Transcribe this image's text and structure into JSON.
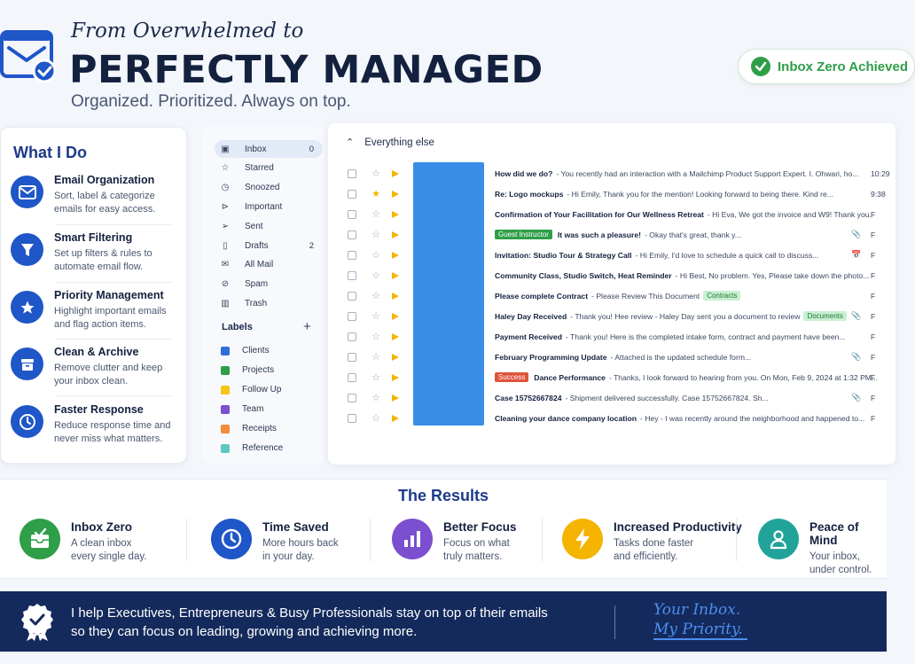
{
  "header": {
    "tagline": "From Overwhelmed to",
    "title": "PERFECTLY MANAGED",
    "subtitle": "Organized. Prioritized. Always on top.",
    "badge": "Inbox Zero Achieved"
  },
  "what_i_do": {
    "title": "What I Do",
    "items": [
      {
        "title": "Email Organization",
        "desc": "Sort, label & categorize emails for easy access.",
        "icon": "envelope-icon"
      },
      {
        "title": "Smart Filtering",
        "desc": "Set up filters & rules to automate email flow.",
        "icon": "filter-icon"
      },
      {
        "title": "Priority Management",
        "desc": "Highlight important emails and flag action items.",
        "icon": "star-icon"
      },
      {
        "title": "Clean & Archive",
        "desc": "Remove clutter and keep your inbox clean.",
        "icon": "archive-icon"
      },
      {
        "title": "Faster Response",
        "desc": "Reduce response time and never miss what matters.",
        "icon": "clock-icon"
      }
    ]
  },
  "sidebar": {
    "nav": [
      {
        "label": "Inbox",
        "count": "0",
        "icon": "inbox-icon"
      },
      {
        "label": "Starred",
        "count": "",
        "icon": "star-icon"
      },
      {
        "label": "Snoozed",
        "count": "",
        "icon": "clock-icon"
      },
      {
        "label": "Important",
        "count": "",
        "icon": "important-icon"
      },
      {
        "label": "Sent",
        "count": "",
        "icon": "send-icon"
      },
      {
        "label": "Drafts",
        "count": "2",
        "icon": "draft-icon"
      },
      {
        "label": "All Mail",
        "count": "",
        "icon": "mail-icon"
      },
      {
        "label": "Spam",
        "count": "",
        "icon": "spam-icon"
      },
      {
        "label": "Trash",
        "count": "",
        "icon": "trash-icon"
      }
    ],
    "labels_title": "Labels",
    "labels": [
      {
        "label": "Clients",
        "color": "#2f6fd6"
      },
      {
        "label": "Projects",
        "color": "#2e9e48"
      },
      {
        "label": "Follow Up",
        "color": "#f5c518"
      },
      {
        "label": "Team",
        "color": "#7b4fd0"
      },
      {
        "label": "Receipts",
        "color": "#f28c3b"
      },
      {
        "label": "Reference",
        "color": "#5ec9c0"
      }
    ]
  },
  "inbox": {
    "section_title": "Everything else",
    "rows": [
      {
        "chip": "",
        "subject": "How did we do?",
        "snippet": " - You recently had an interaction with a Mailchimp Product Support Expert. I. Ohwari, ho...",
        "tag": "",
        "time": "10:29",
        "star": false,
        "att": ""
      },
      {
        "chip": "",
        "subject": "Re: Logo mockups",
        "snippet": " - Hi Emily, Thank you for the mention! Looking forward to being there. Kind re...",
        "tag": "",
        "time": "9:38",
        "star": true,
        "att": ""
      },
      {
        "chip": "",
        "subject": "Confirmation of Your Facilitation for Our Wellness Retreat",
        "snippet": " - Hi Eva, We got the invoice and W9! Thank you.",
        "tag": "",
        "time": "F",
        "star": false,
        "att": ""
      },
      {
        "chip": "Guest Instructor",
        "subject": "It was such a pleasure!",
        "snippet": " - Okay that's great, thank y...",
        "tag": "",
        "time": "F",
        "star": false,
        "att": "📎"
      },
      {
        "chip": "",
        "subject": "Invitation: Studio Tour & Strategy Call",
        "snippet": " - Hi Emily, I'd love to schedule a quick call to discuss...",
        "tag": "",
        "time": "F",
        "star": false,
        "att": "📅"
      },
      {
        "chip": "",
        "subject": "Community Class, Studio Switch, Heat Reminder",
        "snippet": " - Hi Best, No problem. Yes, Please take down the photo...",
        "tag": "",
        "time": "F",
        "star": false,
        "att": ""
      },
      {
        "chip": "",
        "subject": "Please complete Contract",
        "snippet": " - Please Review This Document",
        "tag": "Contracts",
        "time": "F",
        "star": false,
        "att": ""
      },
      {
        "chip": "",
        "subject": "Haley Day Received",
        "snippet": " - Thank you! Hee review - Haley Day sent you a document to review",
        "tag": "Documents",
        "time": "F",
        "star": false,
        "att": "📎"
      },
      {
        "chip": "",
        "subject": "Payment Received",
        "snippet": " - Thank you! Here is the completed intake form, contract and payment have been...",
        "tag": "",
        "time": "F",
        "star": false,
        "att": ""
      },
      {
        "chip": "",
        "subject": "February Programming Update",
        "snippet": " - Attached is the updated schedule form...",
        "tag": "",
        "time": "F",
        "star": false,
        "att": "📎"
      },
      {
        "chip": "Success",
        "subject": "Dance Performance",
        "snippet": " - Thanks, I look forward to hearing from you. On Mon, Feb 9, 2024 at 1:32 PM...",
        "tag": "",
        "time": "F",
        "star": false,
        "att": ""
      },
      {
        "chip": "",
        "subject": "Case 15752667824",
        "snippet": " - Shipment delivered successfully. Case 15752667824. Sh...",
        "tag": "",
        "time": "F",
        "star": false,
        "att": "📎"
      },
      {
        "chip": "",
        "subject": "Cleaning your dance company location",
        "snippet": " - Hey - I was recently around the neighborhood and happened to...",
        "tag": "",
        "time": "F",
        "star": false,
        "att": ""
      }
    ]
  },
  "results": {
    "title": "The Results",
    "items": [
      {
        "title": "Inbox Zero",
        "l1": "A clean inbox",
        "l2": "every single day.",
        "color": "#2e9e48",
        "icon": "inbox-check-icon"
      },
      {
        "title": "Time Saved",
        "l1": "More hours back",
        "l2": "in your day.",
        "color": "#1f56c8",
        "icon": "clock-icon"
      },
      {
        "title": "Better Focus",
        "l1": "Focus on what",
        "l2": "truly matters.",
        "color": "#7b4fd0",
        "icon": "bar-chart-icon"
      },
      {
        "title": "Increased Productivity",
        "l1": "Tasks done faster",
        "l2": "and efficiently.",
        "color": "#f5b400",
        "icon": "lightning-icon"
      },
      {
        "title": "Peace of Mind",
        "l1": "Your inbox,",
        "l2": "under control.",
        "color": "#22a39a",
        "icon": "person-icon"
      }
    ]
  },
  "footer": {
    "line1": "I help Executives, Entrepreneurs & Busy Professionals stay on top of their emails",
    "line2": "so they can focus on leading, growing and achieving more.",
    "script1": "Your Inbox.",
    "script2": "My Priority."
  }
}
